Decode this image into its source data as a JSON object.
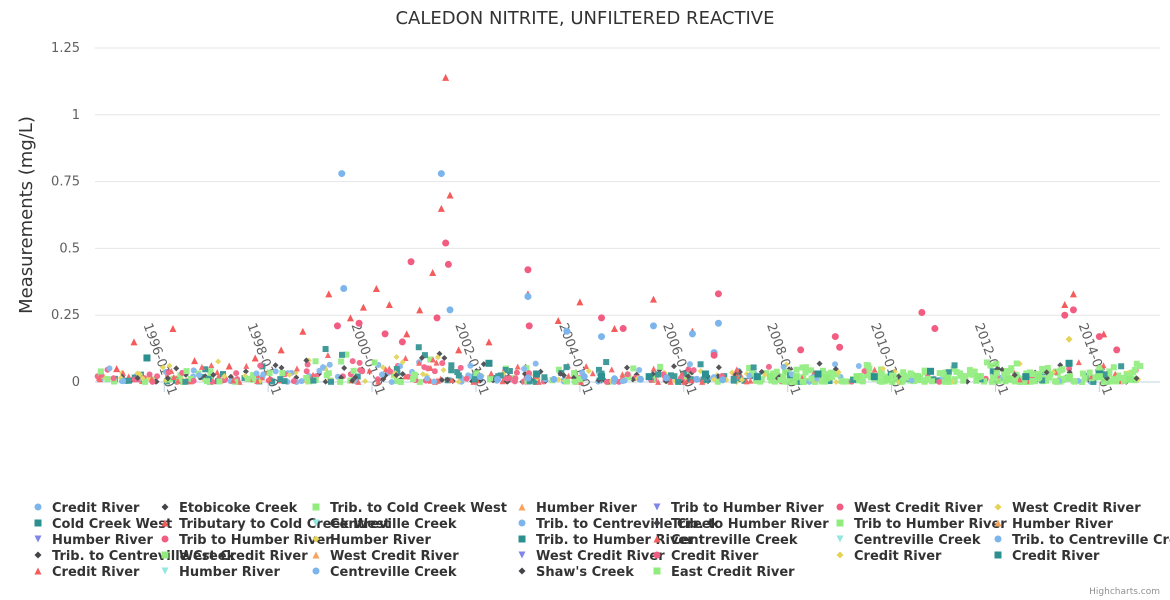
{
  "chart_data": {
    "type": "scatter",
    "title": "CALEDON NITRITE, UNFILTERED REACTIVE",
    "xlabel": "",
    "ylabel": "Measurements (mg/L)",
    "xlim": [
      "1994-09-01",
      "2015-03-01"
    ],
    "ylim": [
      0,
      1.25
    ],
    "y_ticks": [
      "0",
      "0.25",
      "0.5",
      "0.75",
      "1",
      "1.25"
    ],
    "x_ticks": [
      "1996-01-01",
      "1998-01-01",
      "2000-01-01",
      "2002-01-01",
      "2004-01-01",
      "2006-01-01",
      "2008-01-01",
      "2010-01-01",
      "2012-01-01",
      "2014-01-01"
    ],
    "grid": true,
    "legend_position": "bottom",
    "credits": "Highcharts.com",
    "series": [
      {
        "name": "Credit River",
        "color": "#7cb5ec",
        "marker": "circle",
        "points": [
          [
            "2002-02-01",
            0.02
          ],
          [
            "2002-06-01",
            0.01
          ],
          [
            "2003-01-01",
            0.015
          ],
          [
            "2003-07-01",
            0.01
          ],
          [
            "2004-02-01",
            0.02
          ],
          [
            "2004-09-01",
            0.012
          ],
          [
            "2005-03-01",
            0.01
          ],
          [
            "2005-09-01",
            0.015
          ],
          [
            "2006-04-01",
            0.01
          ],
          [
            "2006-10-01",
            0.008
          ]
        ]
      },
      {
        "name": "Etobicoke Creek",
        "color": "#434348",
        "marker": "diamond",
        "points": []
      },
      {
        "name": "Trib. to Cold Creek West",
        "color": "#90ed7d",
        "marker": "square",
        "points": []
      },
      {
        "name": "Humber River",
        "color": "#f7a35c",
        "marker": "triangle",
        "points": []
      },
      {
        "name": "Trib to Humber River",
        "color": "#8085e9",
        "marker": "triangle-down",
        "points": []
      },
      {
        "name": "West Credit River",
        "color": "#f15c80",
        "marker": "circle",
        "points": []
      },
      {
        "name": "West Credit River",
        "color": "#e4d354",
        "marker": "diamond",
        "points": []
      },
      {
        "name": "Cold Creek West",
        "color": "#2b908f",
        "marker": "square",
        "points": [
          [
            "1995-09-01",
            0.09
          ],
          [
            "2002-04-01",
            0.07
          ],
          [
            "2003-03-01",
            0.03
          ],
          [
            "2004-06-01",
            0.02
          ],
          [
            "2005-05-01",
            0.02
          ],
          [
            "2006-06-01",
            0.03
          ],
          [
            "2007-06-01",
            0.02
          ],
          [
            "2008-08-01",
            0.03
          ],
          [
            "2009-09-01",
            0.02
          ],
          [
            "2010-10-01",
            0.04
          ],
          [
            "2012-08-01",
            0.02
          ],
          [
            "2013-06-01",
            0.07
          ],
          [
            "2014-01-01",
            0.03
          ]
        ]
      },
      {
        "name": "Tributary to Cold Creek West",
        "color": "#f45b5b",
        "marker": "triangle",
        "points": [
          [
            "1995-02-01",
            0.05
          ],
          [
            "1995-06-01",
            0.15
          ],
          [
            "1996-03-01",
            0.2
          ],
          [
            "1996-08-01",
            0.08
          ],
          [
            "1997-04-01",
            0.06
          ],
          [
            "1997-10-01",
            0.09
          ],
          [
            "1998-04-01",
            0.12
          ],
          [
            "1998-09-01",
            0.19
          ],
          [
            "1999-03-01",
            0.33
          ],
          [
            "1999-08-01",
            0.24
          ],
          [
            "1999-11-01",
            0.28
          ],
          [
            "2000-02-01",
            0.35
          ],
          [
            "2000-05-01",
            0.29
          ],
          [
            "2000-09-01",
            0.18
          ],
          [
            "2000-12-01",
            0.27
          ],
          [
            "2001-03-01",
            0.41
          ],
          [
            "2001-05-01",
            0.65
          ],
          [
            "2001-06-01",
            1.14
          ],
          [
            "2001-07-01",
            0.7
          ],
          [
            "2001-09-01",
            0.12
          ],
          [
            "2002-04-01",
            0.15
          ],
          [
            "2003-01-01",
            0.33
          ],
          [
            "2003-08-01",
            0.23
          ],
          [
            "2004-01-01",
            0.3
          ],
          [
            "2004-09-01",
            0.2
          ],
          [
            "2005-06-01",
            0.31
          ],
          [
            "2006-03-01",
            0.19
          ],
          [
            "2013-07-01",
            0.33
          ],
          [
            "2013-05-01",
            0.29
          ],
          [
            "2014-02-01",
            0.18
          ]
        ]
      },
      {
        "name": "Centreville Creek",
        "color": "#91e8e1",
        "marker": "triangle-down",
        "points": []
      },
      {
        "name": "Trib. to Centreville Creek",
        "color": "#7cb5ec",
        "marker": "circle",
        "points": [
          [
            "1999-06-01",
            0.78
          ],
          [
            "1999-06-15",
            0.35
          ],
          [
            "2001-05-01",
            0.78
          ],
          [
            "2001-07-01",
            0.27
          ],
          [
            "2003-01-01",
            0.32
          ],
          [
            "2003-10-01",
            0.19
          ],
          [
            "2004-06-01",
            0.17
          ],
          [
            "2005-06-01",
            0.21
          ],
          [
            "2006-03-01",
            0.18
          ],
          [
            "2006-09-01",
            0.22
          ],
          [
            "2006-08-01",
            0.11
          ]
        ]
      },
      {
        "name": "Trib. to Humber River",
        "color": "#434348",
        "marker": "diamond",
        "points": []
      },
      {
        "name": "Trib to Humber River",
        "color": "#90ed7d",
        "marker": "square",
        "points": []
      },
      {
        "name": "Humber River",
        "color": "#f7a35c",
        "marker": "triangle",
        "points": []
      },
      {
        "name": "Humber River",
        "color": "#8085e9",
        "marker": "triangle-down",
        "points": []
      },
      {
        "name": "Trib to Humber River",
        "color": "#f15c80",
        "marker": "circle",
        "points": [
          [
            "1999-05-01",
            0.21
          ],
          [
            "1999-10-01",
            0.22
          ],
          [
            "2000-04-01",
            0.18
          ],
          [
            "2000-08-01",
            0.15
          ],
          [
            "2000-10-01",
            0.45
          ],
          [
            "2001-04-01",
            0.24
          ],
          [
            "2001-06-01",
            0.52
          ],
          [
            "2001-06-20",
            0.44
          ],
          [
            "2003-01-01",
            0.42
          ],
          [
            "2003-01-10",
            0.21
          ],
          [
            "2004-06-01",
            0.24
          ],
          [
            "2004-11-01",
            0.2
          ],
          [
            "2006-08-01",
            0.1
          ],
          [
            "2006-09-01",
            0.33
          ],
          [
            "2008-04-01",
            0.12
          ],
          [
            "2008-12-01",
            0.17
          ],
          [
            "2009-01-01",
            0.13
          ],
          [
            "2010-08-01",
            0.26
          ],
          [
            "2010-11-01",
            0.2
          ],
          [
            "2013-05-01",
            0.25
          ],
          [
            "2013-07-01",
            0.27
          ],
          [
            "2014-01-01",
            0.17
          ],
          [
            "2014-05-01",
            0.12
          ]
        ]
      },
      {
        "name": "Humber River",
        "color": "#e4d354",
        "marker": "diamond",
        "points": [
          [
            "2013-06-01",
            0.16
          ]
        ]
      },
      {
        "name": "Trib. to Humber River",
        "color": "#2b908f",
        "marker": "square",
        "points": []
      },
      {
        "name": "Centreville Creek",
        "color": "#f45b5b",
        "marker": "triangle",
        "points": []
      },
      {
        "name": "Centreville Creek",
        "color": "#91e8e1",
        "marker": "triangle-down",
        "points": []
      },
      {
        "name": "Trib. to Centreville Creek",
        "color": "#7cb5ec",
        "marker": "circle",
        "points": []
      },
      {
        "name": "Trib. to Centreville Creek",
        "color": "#434348",
        "marker": "diamond",
        "points": []
      },
      {
        "name": "West Credit River",
        "color": "#90ed7d",
        "marker": "square",
        "points": [
          [
            "2007-09-01",
            0.02
          ],
          [
            "2008-03-01",
            0.02
          ],
          [
            "2008-10-01",
            0.015
          ],
          [
            "2009-05-01",
            0.02
          ],
          [
            "2009-12-01",
            0.01
          ],
          [
            "2010-07-01",
            0.02
          ],
          [
            "2011-02-01",
            0.015
          ],
          [
            "2011-09-01",
            0.02
          ],
          [
            "2012-04-01",
            0.01
          ],
          [
            "2012-11-01",
            0.02
          ],
          [
            "2013-06-01",
            0.015
          ],
          [
            "2014-01-01",
            0.02
          ],
          [
            "2014-08-01",
            0.01
          ]
        ]
      },
      {
        "name": "West Credit River",
        "color": "#f7a35c",
        "marker": "triangle",
        "points": []
      },
      {
        "name": "West Credit River",
        "color": "#8085e9",
        "marker": "triangle-down",
        "points": []
      },
      {
        "name": "Credit River",
        "color": "#f15c80",
        "marker": "circle",
        "points": []
      },
      {
        "name": "Credit River",
        "color": "#e4d354",
        "marker": "diamond",
        "points": []
      },
      {
        "name": "Credit River",
        "color": "#2b908f",
        "marker": "square",
        "points": []
      },
      {
        "name": "Credit River",
        "color": "#f45b5b",
        "marker": "triangle",
        "points": []
      },
      {
        "name": "Humber River",
        "color": "#91e8e1",
        "marker": "triangle-down",
        "points": []
      },
      {
        "name": "Centreville Creek",
        "color": "#7cb5ec",
        "marker": "circle",
        "points": []
      },
      {
        "name": "Shaw's Creek",
        "color": "#434348",
        "marker": "diamond",
        "points": []
      },
      {
        "name": "East Credit River",
        "color": "#90ed7d",
        "marker": "square",
        "points": []
      }
    ]
  }
}
